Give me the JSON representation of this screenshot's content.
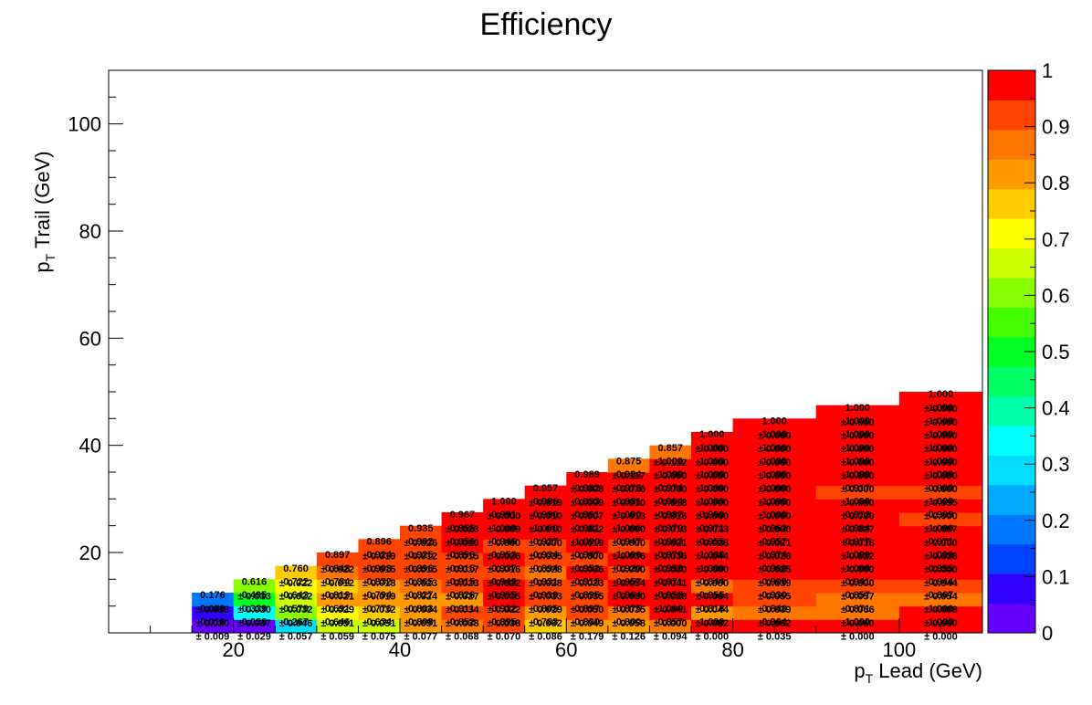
{
  "chart_data": {
    "type": "heatmap",
    "title": "Efficiency",
    "xlabel": {
      "main": "p",
      "sub": "T",
      "rest": " Lead (GeV)"
    },
    "ylabel": {
      "main": "p",
      "sub": "T",
      "rest": " Trail (GeV)"
    },
    "xlim": [
      5,
      110
    ],
    "ylim": [
      5,
      110
    ],
    "x_ticks": [
      20,
      40,
      60,
      80,
      100
    ],
    "y_ticks": [
      20,
      40,
      60,
      80,
      100
    ],
    "z_range": [
      0,
      1
    ],
    "z_ticks": [
      "0",
      "0.1",
      "0.2",
      "0.3",
      "0.4",
      "0.5",
      "0.6",
      "0.7",
      "0.8",
      "0.9",
      "1"
    ],
    "palette": [
      "#6600ff",
      "#3300ff",
      "#0044ff",
      "#0077ff",
      "#00aaff",
      "#00ddff",
      "#00ffff",
      "#00ffaa",
      "#00ff66",
      "#00ff22",
      "#44ff00",
      "#88ff00",
      "#ccff00",
      "#ffff00",
      "#ffcc00",
      "#ff9900",
      "#ff7700",
      "#ff4400",
      "#ff0000"
    ],
    "x_edges": [
      15,
      20,
      25,
      30,
      35,
      40,
      45,
      50,
      55,
      60,
      65,
      70,
      75,
      80,
      90,
      100,
      110
    ],
    "y_edges": [
      5,
      7.5,
      10,
      12.5,
      15,
      17.5,
      20,
      22.5,
      25,
      27.5,
      30,
      32.5,
      35,
      37.5,
      40,
      42.5,
      45,
      47.5,
      50,
      52.5,
      55,
      57.5,
      60,
      62.5,
      65,
      67.5,
      70,
      72.5,
      75,
      80,
      90,
      100,
      110
    ],
    "cells": [
      {
        "col": 0,
        "row": 0,
        "v": "0.010",
        "e": "0.009"
      },
      {
        "col": 1,
        "row": 0,
        "v": "0.036",
        "e": "0.029"
      },
      {
        "col": 2,
        "row": 0,
        "v": "0.267",
        "e": "0.057"
      },
      {
        "col": 3,
        "row": 0,
        "v": "0.646",
        "e": "0.059"
      },
      {
        "col": 4,
        "row": 0,
        "v": "0.634",
        "e": "0.075"
      },
      {
        "col": 5,
        "row": 0,
        "v": "0.808",
        "e": "0.077"
      },
      {
        "col": 6,
        "row": 0,
        "v": "0.852",
        "e": "0.068"
      },
      {
        "col": 7,
        "row": 0,
        "v": "0.895",
        "e": "0.070"
      },
      {
        "col": 8,
        "row": 0,
        "v": "0.783",
        "e": "0.086"
      },
      {
        "col": 9,
        "row": 0,
        "v": "0.800",
        "e": "0.179"
      },
      {
        "col": 10,
        "row": 0,
        "v": "0.800",
        "e": "0.126"
      },
      {
        "col": 11,
        "row": 0,
        "v": "0.857",
        "e": "0.094"
      },
      {
        "col": 12,
        "row": 0,
        "v": "1.000",
        "e": "0.000"
      },
      {
        "col": 13,
        "row": 0,
        "v": "0.964",
        "e": "0.035"
      },
      {
        "col": 14,
        "row": 0,
        "v": "1.000",
        "e": "0.000"
      },
      {
        "col": 15,
        "row": 0,
        "v": "1.000",
        "e": "0.000"
      },
      {
        "col": 0,
        "row": 1,
        "v": "0.080",
        "e": "0.020"
      },
      {
        "col": 1,
        "row": 1,
        "v": "0.339",
        "e": "0.037"
      },
      {
        "col": 2,
        "row": 1,
        "v": "0.579",
        "e": "0.046"
      },
      {
        "col": 3,
        "row": 1,
        "v": "0.691",
        "e": "0.051"
      },
      {
        "col": 4,
        "row": 1,
        "v": "0.776",
        "e": "0.051"
      },
      {
        "col": 5,
        "row": 1,
        "v": "0.803",
        "e": "0.051"
      },
      {
        "col": 6,
        "row": 1,
        "v": "0.911",
        "e": "0.038"
      },
      {
        "col": 7,
        "row": 1,
        "v": "0.932",
        "e": "0.038"
      },
      {
        "col": 8,
        "row": 1,
        "v": "0.805",
        "e": "0.062"
      },
      {
        "col": 9,
        "row": 1,
        "v": "0.897",
        "e": "0.049"
      },
      {
        "col": 10,
        "row": 1,
        "v": "0.875",
        "e": "0.058"
      },
      {
        "col": 11,
        "row": 1,
        "v": "1.000",
        "e": "0.000"
      },
      {
        "col": 12,
        "row": 1,
        "v": "0.818",
        "e": "0.082"
      },
      {
        "col": 13,
        "row": 1,
        "v": "0.848",
        "e": "0.062"
      },
      {
        "col": 14,
        "row": 1,
        "v": "0.871",
        "e": "0.060"
      },
      {
        "col": 15,
        "row": 1,
        "v": "1.000",
        "e": "0.000"
      },
      {
        "col": 0,
        "row": 2,
        "v": "0.176",
        "e": "0.033"
      },
      {
        "col": 1,
        "row": 2,
        "v": "0.495",
        "e": "0.030"
      },
      {
        "col": 2,
        "row": 2,
        "v": "0.643",
        "e": "0.032"
      },
      {
        "col": 3,
        "row": 2,
        "v": "0.819",
        "e": "0.029"
      },
      {
        "col": 4,
        "row": 2,
        "v": "0.794",
        "e": "0.032"
      },
      {
        "col": 5,
        "row": 2,
        "v": "0.827",
        "e": "0.034"
      },
      {
        "col": 6,
        "row": 2,
        "v": "0.826",
        "e": "0.034"
      },
      {
        "col": 7,
        "row": 2,
        "v": "0.955",
        "e": "0.022"
      },
      {
        "col": 8,
        "row": 2,
        "v": "0.939",
        "e": "0.029"
      },
      {
        "col": 9,
        "row": 2,
        "v": "0.895",
        "e": "0.050"
      },
      {
        "col": 10,
        "row": 2,
        "v": "0.964",
        "e": "0.035"
      },
      {
        "col": 11,
        "row": 2,
        "v": "0.958",
        "e": "0.041"
      },
      {
        "col": 12,
        "row": 2,
        "v": "0.955",
        "e": "0.044"
      },
      {
        "col": 13,
        "row": 2,
        "v": "0.930",
        "e": "0.039"
      },
      {
        "col": 14,
        "row": 2,
        "v": "0.857",
        "e": "0.066"
      },
      {
        "col": 15,
        "row": 2,
        "v": "0.867",
        "e": "0.088"
      },
      {
        "col": 1,
        "row": 3,
        "v": "0.616",
        "e": "0.033"
      },
      {
        "col": 2,
        "row": 3,
        "v": "0.722",
        "e": "0.022"
      },
      {
        "col": 3,
        "row": 3,
        "v": "0.784",
        "e": "0.021"
      },
      {
        "col": 4,
        "row": 3,
        "v": "0.832",
        "e": "0.019"
      },
      {
        "col": 5,
        "row": 3,
        "v": "0.865",
        "e": "0.024"
      },
      {
        "col": 6,
        "row": 3,
        "v": "0.915",
        "e": "0.027"
      },
      {
        "col": 7,
        "row": 3,
        "v": "0.949",
        "e": "0.025"
      },
      {
        "col": 8,
        "row": 3,
        "v": "0.931",
        "e": "0.033"
      },
      {
        "col": 9,
        "row": 3,
        "v": "0.918",
        "e": "0.035"
      },
      {
        "col": 10,
        "row": 3,
        "v": "0.957",
        "e": "0.030"
      },
      {
        "col": 11,
        "row": 3,
        "v": "0.971",
        "e": "0.028"
      },
      {
        "col": 12,
        "row": 3,
        "v": "0.844",
        "e": "0.064"
      },
      {
        "col": 13,
        "row": 3,
        "v": "0.900",
        "e": "0.055"
      },
      {
        "col": 14,
        "row": 3,
        "v": "0.941",
        "e": "0.057"
      },
      {
        "col": 15,
        "row": 3,
        "v": "0.944",
        "e": "0.054"
      },
      {
        "col": 2,
        "row": 4,
        "v": "0.760",
        "e": "0.022"
      },
      {
        "col": 3,
        "row": 4,
        "v": "0.848",
        "e": "0.012"
      },
      {
        "col": 4,
        "row": 4,
        "v": "0.903",
        "e": "0.018"
      },
      {
        "col": 5,
        "row": 4,
        "v": "0.896",
        "e": "0.023"
      },
      {
        "col": 6,
        "row": 4,
        "v": "0.915",
        "e": "0.023"
      },
      {
        "col": 7,
        "row": 4,
        "v": "0.937",
        "e": "0.022"
      },
      {
        "col": 8,
        "row": 4,
        "v": "0.894",
        "e": "0.028"
      },
      {
        "col": 9,
        "row": 4,
        "v": "0.952",
        "e": "0.023"
      },
      {
        "col": 10,
        "row": 4,
        "v": "0.920",
        "e": "0.054"
      },
      {
        "col": 11,
        "row": 4,
        "v": "0.958",
        "e": "0.041"
      },
      {
        "col": 12,
        "row": 4,
        "v": "1.000",
        "e": "0.000"
      },
      {
        "col": 13,
        "row": 4,
        "v": "0.960",
        "e": "0.039"
      },
      {
        "col": 14,
        "row": 4,
        "v": "1.000",
        "e": "0.000"
      },
      {
        "col": 15,
        "row": 4,
        "v": "0.955",
        "e": "0.044"
      },
      {
        "col": 3,
        "row": 5,
        "v": "0.897",
        "e": "0.022"
      },
      {
        "col": 4,
        "row": 5,
        "v": "0.924",
        "e": "0.015"
      },
      {
        "col": 5,
        "row": 5,
        "v": "0.925",
        "e": "0.015"
      },
      {
        "col": 6,
        "row": 5,
        "v": "0.896",
        "e": "0.017"
      },
      {
        "col": 7,
        "row": 5,
        "v": "0.953",
        "e": "0.016"
      },
      {
        "col": 8,
        "row": 5,
        "v": "0.934",
        "e": "0.028"
      },
      {
        "col": 9,
        "row": 5,
        "v": "0.947",
        "e": "0.036"
      },
      {
        "col": 10,
        "row": 5,
        "v": "1.000",
        "e": "0.000"
      },
      {
        "col": 11,
        "row": 5,
        "v": "0.970",
        "e": "0.030"
      },
      {
        "col": 12,
        "row": 5,
        "v": "1.000",
        "e": "0.000"
      },
      {
        "col": 13,
        "row": 5,
        "v": "0.974",
        "e": "0.025"
      },
      {
        "col": 14,
        "row": 5,
        "v": "1.000",
        "e": "0.000"
      },
      {
        "col": 15,
        "row": 5,
        "v": "1.000",
        "e": "0.000"
      },
      {
        "col": 4,
        "row": 6,
        "v": "0.896",
        "e": "0.019"
      },
      {
        "col": 5,
        "row": 6,
        "v": "0.902",
        "e": "0.012"
      },
      {
        "col": 6,
        "row": 6,
        "v": "0.956",
        "e": "0.015"
      },
      {
        "col": 7,
        "row": 6,
        "v": "0.946",
        "e": "0.026"
      },
      {
        "col": 8,
        "row": 6,
        "v": "0.927",
        "e": "0.035"
      },
      {
        "col": 9,
        "row": 6,
        "v": "1.000",
        "e": "0.000"
      },
      {
        "col": 10,
        "row": 6,
        "v": "0.947",
        "e": "0.036"
      },
      {
        "col": 11,
        "row": 6,
        "v": "0.963",
        "e": "0.036"
      },
      {
        "col": 12,
        "row": 6,
        "v": "0.955",
        "e": "0.044"
      },
      {
        "col": 13,
        "row": 6,
        "v": "0.957",
        "e": "0.029"
      },
      {
        "col": 14,
        "row": 6,
        "v": "0.977",
        "e": "0.022"
      },
      {
        "col": 15,
        "row": 6,
        "v": "0.971",
        "e": "0.028"
      },
      {
        "col": 5,
        "row": 7,
        "v": "0.935",
        "e": "0.026"
      },
      {
        "col": 6,
        "row": 7,
        "v": "0.955",
        "e": "0.020"
      },
      {
        "col": 7,
        "row": 7,
        "v": "1.000",
        "e": "0.000"
      },
      {
        "col": 8,
        "row": 7,
        "v": "1.000",
        "e": "0.000"
      },
      {
        "col": 9,
        "row": 7,
        "v": "0.981",
        "e": "0.019"
      },
      {
        "col": 10,
        "row": 7,
        "v": "1.000",
        "e": "0.000"
      },
      {
        "col": 11,
        "row": 7,
        "v": "0.979",
        "e": "0.021"
      },
      {
        "col": 12,
        "row": 7,
        "v": "0.971",
        "e": "0.028"
      },
      {
        "col": 13,
        "row": 7,
        "v": "0.962",
        "e": "0.021"
      },
      {
        "col": 14,
        "row": 7,
        "v": "0.984",
        "e": "0.016"
      },
      {
        "col": 15,
        "row": 7,
        "v": "1.000",
        "e": "0.000"
      },
      {
        "col": 6,
        "row": 8,
        "v": "0.967",
        "e": "0.023"
      },
      {
        "col": 7,
        "row": 8,
        "v": "0.991",
        "e": "0.009"
      },
      {
        "col": 8,
        "row": 8,
        "v": "0.990",
        "e": "0.010"
      },
      {
        "col": 9,
        "row": 8,
        "v": "0.961",
        "e": "0.022"
      },
      {
        "col": 10,
        "row": 8,
        "v": "1.000",
        "e": "0.000"
      },
      {
        "col": 11,
        "row": 8,
        "v": "0.987",
        "e": "0.013"
      },
      {
        "col": 12,
        "row": 8,
        "v": "0.960",
        "e": "0.023"
      },
      {
        "col": 13,
        "row": 8,
        "v": "1.000",
        "e": "0.000"
      },
      {
        "col": 14,
        "row": 8,
        "v": "0.972",
        "e": "0.027"
      },
      {
        "col": 15,
        "row": 8,
        "v": "0.909",
        "e": "0.087"
      },
      {
        "col": 7,
        "row": 9,
        "v": "1.000",
        "e": "0.000"
      },
      {
        "col": 8,
        "row": 9,
        "v": "0.986",
        "e": "0.010"
      },
      {
        "col": 9,
        "row": 9,
        "v": "0.993",
        "e": "0.007"
      },
      {
        "col": 10,
        "row": 9,
        "v": "0.981",
        "e": "0.013"
      },
      {
        "col": 11,
        "row": 9,
        "v": "0.964",
        "e": "0.016"
      },
      {
        "col": 12,
        "row": 9,
        "v": "1.000",
        "e": "0.000"
      },
      {
        "col": 13,
        "row": 9,
        "v": "1.000",
        "e": "0.000"
      },
      {
        "col": 14,
        "row": 9,
        "v": "1.000",
        "e": "0.000"
      },
      {
        "col": 15,
        "row": 9,
        "v": "1.000",
        "e": "0.000"
      },
      {
        "col": 8,
        "row": 10,
        "v": "0.957",
        "e": "0.019"
      },
      {
        "col": 9,
        "row": 10,
        "v": "0.982",
        "e": "0.009"
      },
      {
        "col": 10,
        "row": 10,
        "v": "0.973",
        "e": "0.010"
      },
      {
        "col": 11,
        "row": 10,
        "v": "0.974",
        "e": "0.018"
      },
      {
        "col": 12,
        "row": 10,
        "v": "1.000",
        "e": "0.000"
      },
      {
        "col": 13,
        "row": 10,
        "v": "1.000",
        "e": "0.000"
      },
      {
        "col": 14,
        "row": 10,
        "v": "0.917",
        "e": "0.080"
      },
      {
        "col": 15,
        "row": 10,
        "v": "0.900",
        "e": "0.095"
      },
      {
        "col": 9,
        "row": 11,
        "v": "0.989",
        "e": "0.008"
      },
      {
        "col": 10,
        "row": 11,
        "v": "0.984",
        "e": "0.016"
      },
      {
        "col": 11,
        "row": 11,
        "v": "1.000",
        "e": "0.000"
      },
      {
        "col": 12,
        "row": 11,
        "v": "1.000",
        "e": "0.000"
      },
      {
        "col": 13,
        "row": 11,
        "v": "1.000",
        "e": "0.000"
      },
      {
        "col": 14,
        "row": 11,
        "v": "1.000",
        "e": "0.000"
      },
      {
        "col": 15,
        "row": 11,
        "v": "1.000",
        "e": "0.000"
      },
      {
        "col": 10,
        "row": 12,
        "v": "0.875",
        "e": "0.117"
      },
      {
        "col": 11,
        "row": 12,
        "v": "1.000",
        "e": "0.000"
      },
      {
        "col": 12,
        "row": 12,
        "v": "1.000",
        "e": "0.000"
      },
      {
        "col": 13,
        "row": 12,
        "v": "1.000",
        "e": "0.000"
      },
      {
        "col": 14,
        "row": 12,
        "v": "1.000",
        "e": "0.000"
      },
      {
        "col": 15,
        "row": 12,
        "v": "1.000",
        "e": "0.000"
      },
      {
        "col": 11,
        "row": 13,
        "v": "0.857",
        "e": "0.132"
      },
      {
        "col": 12,
        "row": 13,
        "v": "1.000",
        "e": "0.000"
      },
      {
        "col": 13,
        "row": 13,
        "v": "1.000",
        "e": "0.000"
      },
      {
        "col": 14,
        "row": 13,
        "v": "1.000",
        "e": "0.000"
      },
      {
        "col": 15,
        "row": 13,
        "v": "1.000",
        "e": "0.000"
      },
      {
        "col": 12,
        "row": 14,
        "v": "1.000",
        "e": "0.000"
      },
      {
        "col": 13,
        "row": 14,
        "v": "1.000",
        "e": "0.000"
      },
      {
        "col": 14,
        "row": 14,
        "v": "1.000",
        "e": "0.000"
      },
      {
        "col": 15,
        "row": 14,
        "v": "1.000",
        "e": "0.000"
      },
      {
        "col": 13,
        "row": 15,
        "v": "1.000",
        "e": "0.000"
      },
      {
        "col": 14,
        "row": 15,
        "v": "1.000",
        "e": "0.000"
      },
      {
        "col": 15,
        "row": 15,
        "v": "1.000",
        "e": "0.000"
      },
      {
        "col": 14,
        "row": 16,
        "v": "1.000",
        "e": "0.000"
      },
      {
        "col": 15,
        "row": 16,
        "v": "1.000",
        "e": "0.000"
      },
      {
        "col": 15,
        "row": 17,
        "v": "1.000",
        "e": "0.000"
      }
    ]
  }
}
